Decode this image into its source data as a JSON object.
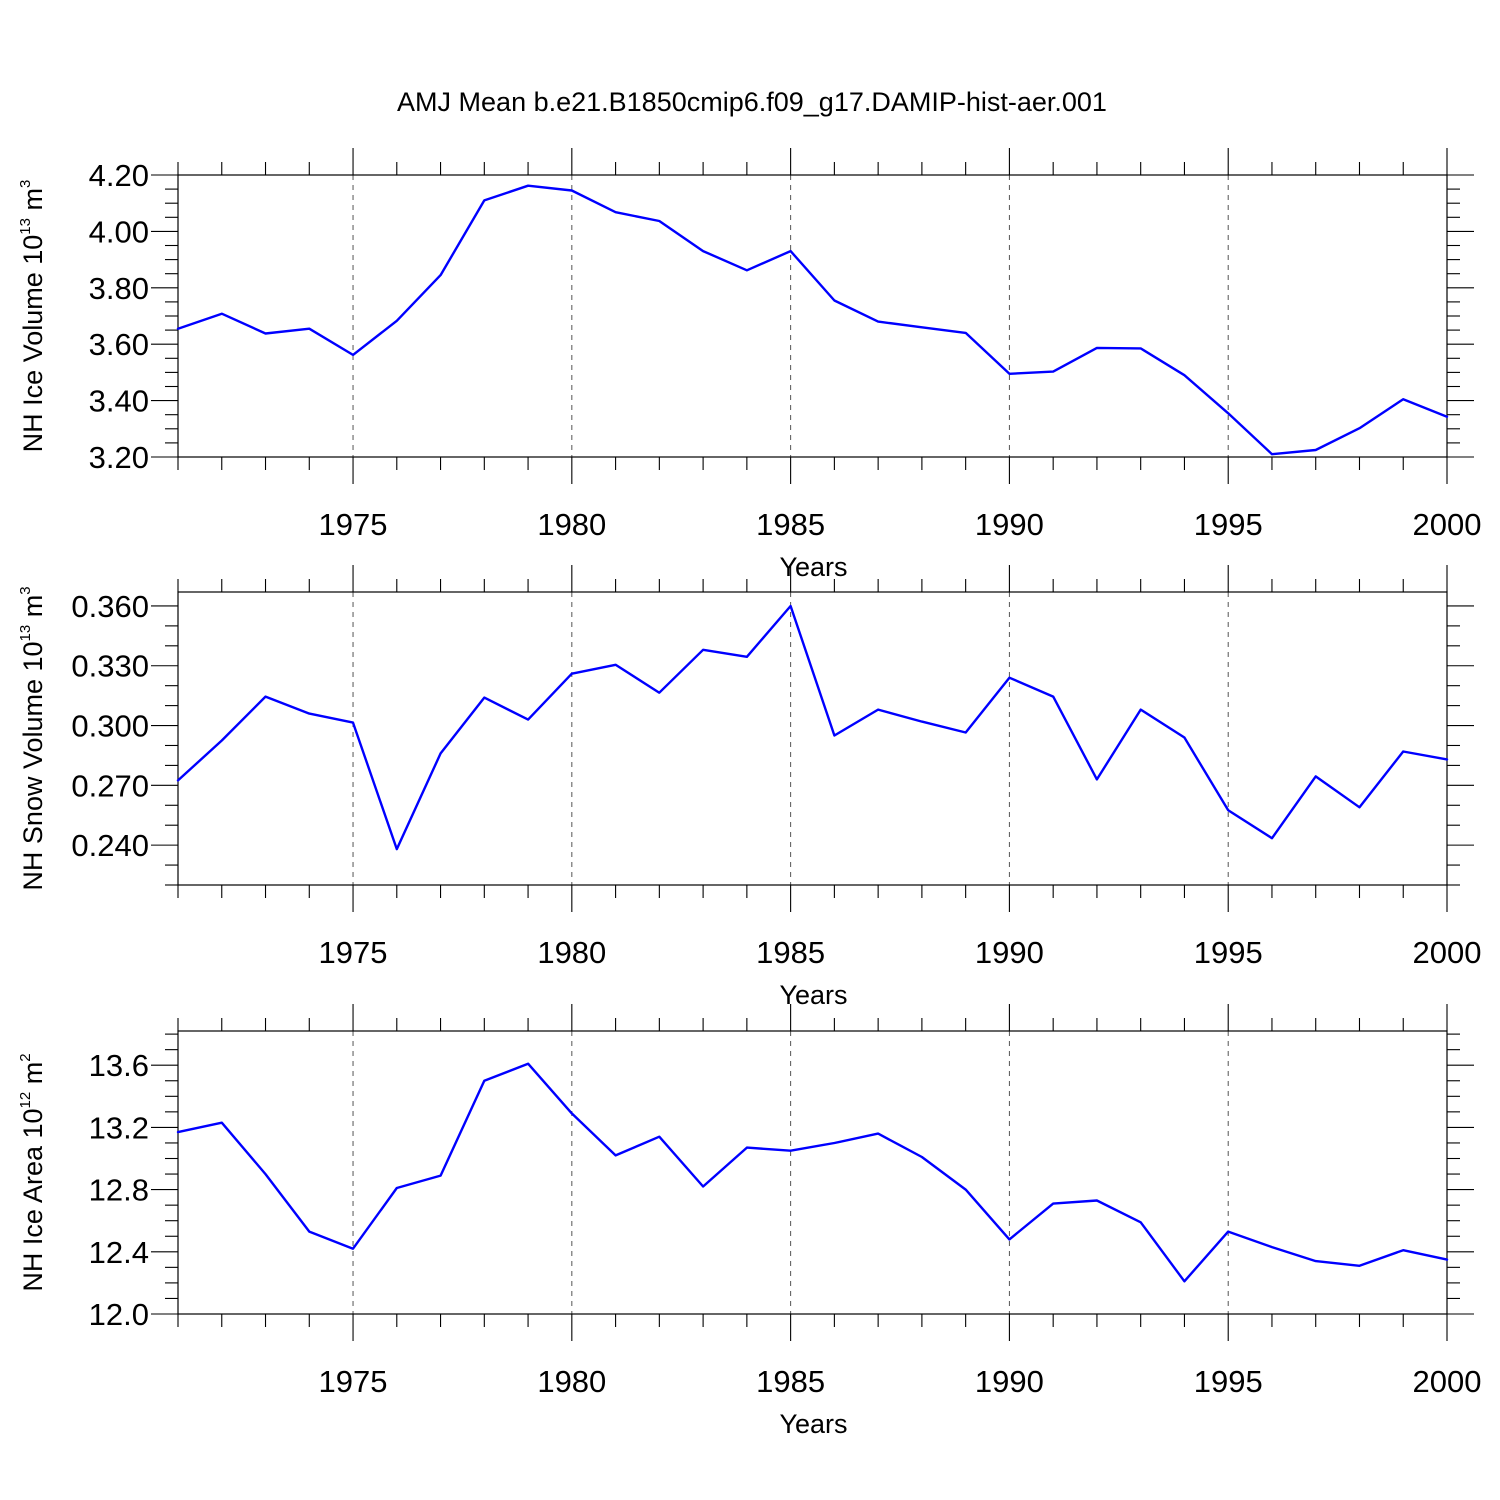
{
  "title": "AMJ Mean b.e21.B1850cmip6.f09_g17.DAMIP-hist-aer.001",
  "colors": {
    "series": "#0000ff",
    "axes": "#000000",
    "grid": "#555555"
  },
  "chart_data": [
    {
      "type": "line",
      "ylabel": {
        "main": "NH Ice Volume 10",
        "exp": "13",
        "unit": " m",
        "unit_exp": "3"
      },
      "xlabel": "Years",
      "xlim": [
        1971,
        2000
      ],
      "ylim": [
        3.2,
        4.2
      ],
      "yticks": [
        3.2,
        3.4,
        3.6,
        3.8,
        4.0,
        4.2
      ],
      "ytick_labels": [
        "3.20",
        "3.40",
        "3.60",
        "3.80",
        "4.00",
        "4.20"
      ],
      "xticks": [
        1975,
        1980,
        1985,
        1990,
        1995,
        2000
      ],
      "xtick_labels": [
        "1975",
        "1980",
        "1985",
        "1990",
        "1995",
        "2000"
      ],
      "grid": "vertical dashed at major x ticks",
      "x": [
        1971,
        1972,
        1973,
        1974,
        1975,
        1976,
        1977,
        1978,
        1979,
        1980,
        1981,
        1982,
        1983,
        1984,
        1985,
        1986,
        1987,
        1988,
        1989,
        1990,
        1991,
        1992,
        1993,
        1994,
        1995,
        1996,
        1997,
        1998,
        1999,
        2000
      ],
      "y": [
        3.655,
        3.708,
        3.638,
        3.655,
        3.562,
        3.683,
        3.845,
        4.11,
        4.162,
        4.145,
        4.068,
        4.037,
        3.93,
        3.862,
        3.93,
        3.755,
        3.68,
        3.66,
        3.64,
        3.495,
        3.503,
        3.587,
        3.585,
        3.49,
        3.355,
        3.21,
        3.225,
        3.302,
        3.405,
        3.343
      ]
    },
    {
      "type": "line",
      "ylabel": {
        "main": "NH Snow Volume 10",
        "exp": "13",
        "unit": " m",
        "unit_exp": "3"
      },
      "xlabel": "Years",
      "xlim": [
        1971,
        2000
      ],
      "ylim": [
        0.22,
        0.367
      ],
      "yticks": [
        0.24,
        0.27,
        0.3,
        0.33,
        0.36
      ],
      "ytick_labels": [
        "0.240",
        "0.270",
        "0.300",
        "0.330",
        "0.360"
      ],
      "xticks": [
        1975,
        1980,
        1985,
        1990,
        1995,
        2000
      ],
      "xtick_labels": [
        "1975",
        "1980",
        "1985",
        "1990",
        "1995",
        "2000"
      ],
      "grid": "vertical dashed at major x ticks",
      "x": [
        1971,
        1972,
        1973,
        1974,
        1975,
        1976,
        1977,
        1978,
        1979,
        1980,
        1981,
        1982,
        1983,
        1984,
        1985,
        1986,
        1987,
        1988,
        1989,
        1990,
        1991,
        1992,
        1993,
        1994,
        1995,
        1996,
        1997,
        1998,
        1999,
        2000
      ],
      "y": [
        0.2725,
        0.2925,
        0.3145,
        0.306,
        0.3015,
        0.238,
        0.286,
        0.314,
        0.303,
        0.326,
        0.3305,
        0.3165,
        0.338,
        0.3345,
        0.36,
        0.295,
        0.308,
        0.302,
        0.2965,
        0.324,
        0.3145,
        0.273,
        0.308,
        0.294,
        0.2575,
        0.2435,
        0.2745,
        0.259,
        0.287,
        0.283
      ]
    },
    {
      "type": "line",
      "ylabel": {
        "main": "NH Ice Area 10",
        "exp": "12",
        "unit": " m",
        "unit_exp": "2"
      },
      "xlabel": "Years",
      "xlim": [
        1971,
        2000
      ],
      "ylim": [
        12.0,
        13.82
      ],
      "yticks": [
        12.0,
        12.4,
        12.8,
        13.2,
        13.6
      ],
      "ytick_labels": [
        "12.0",
        "12.4",
        "12.8",
        "13.2",
        "13.6"
      ],
      "xticks": [
        1975,
        1980,
        1985,
        1990,
        1995,
        2000
      ],
      "xtick_labels": [
        "1975",
        "1980",
        "1985",
        "1990",
        "1995",
        "2000"
      ],
      "grid": "vertical dashed at major x ticks",
      "x": [
        1971,
        1972,
        1973,
        1974,
        1975,
        1976,
        1977,
        1978,
        1979,
        1980,
        1981,
        1982,
        1983,
        1984,
        1985,
        1986,
        1987,
        1988,
        1989,
        1990,
        1991,
        1992,
        1993,
        1994,
        1995,
        1996,
        1997,
        1998,
        1999,
        2000
      ],
      "y": [
        13.17,
        13.23,
        12.9,
        12.53,
        12.42,
        12.81,
        12.89,
        13.5,
        13.61,
        13.29,
        13.02,
        13.14,
        12.82,
        13.07,
        13.05,
        13.1,
        13.16,
        13.01,
        12.8,
        12.48,
        12.71,
        12.73,
        12.59,
        12.21,
        12.53,
        12.43,
        12.34,
        12.31,
        12.41,
        12.35
      ]
    }
  ]
}
